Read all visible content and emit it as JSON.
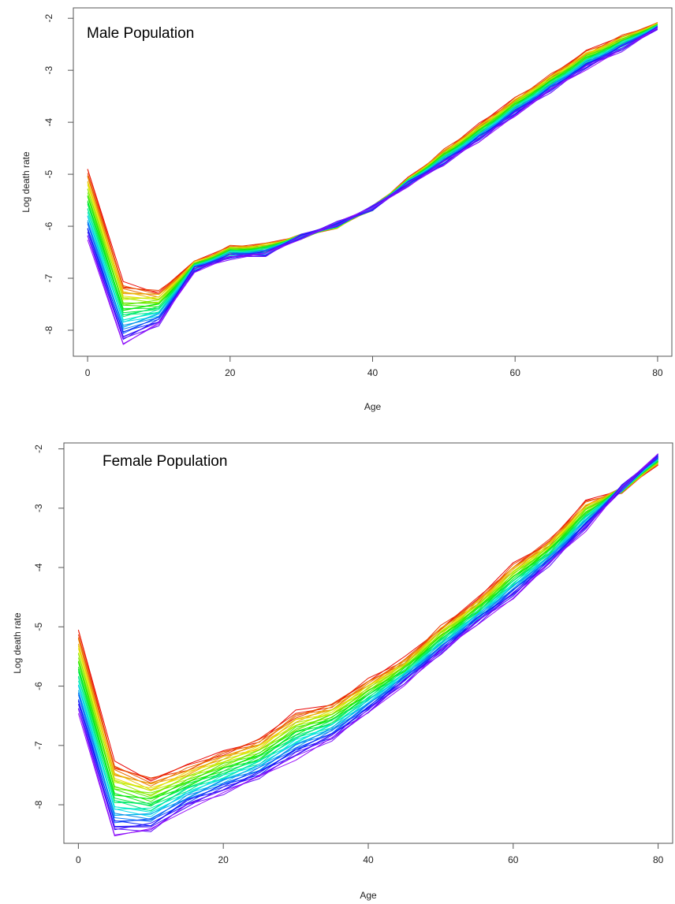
{
  "chart_data": [
    {
      "type": "line",
      "title": "Male Population",
      "xlabel": "Age",
      "ylabel": "Log death rate",
      "xlim": [
        -2,
        82
      ],
      "ylim": [
        -8.5,
        -1.8
      ],
      "xticks": [
        0,
        20,
        40,
        60,
        80
      ],
      "yticks": [
        -8,
        -7,
        -6,
        -5,
        -4,
        -3,
        -2
      ],
      "grid": false,
      "legend": "none",
      "x": [
        0,
        5,
        10,
        15,
        20,
        25,
        30,
        35,
        40,
        45,
        50,
        55,
        60,
        65,
        70,
        75,
        80
      ],
      "series_count": 40,
      "color_scale": "rainbow red→violet (earliest→latest)",
      "series_first": [
        -4.9,
        -7.1,
        -7.25,
        -6.7,
        -6.4,
        -6.35,
        -6.2,
        -6.0,
        -5.65,
        -5.1,
        -4.55,
        -4.05,
        -3.55,
        -3.1,
        -2.65,
        -2.35,
        -2.1
      ],
      "series_last": [
        -6.25,
        -8.25,
        -7.9,
        -6.85,
        -6.6,
        -6.55,
        -6.2,
        -5.95,
        -5.65,
        -5.2,
        -4.8,
        -4.35,
        -3.85,
        -3.4,
        -2.95,
        -2.6,
        -2.2
      ]
    },
    {
      "type": "line",
      "title": "Female Population",
      "xlabel": "Age",
      "ylabel": "Log death rate",
      "xlim": [
        -2,
        82
      ],
      "ylim": [
        -8.65,
        -1.9
      ],
      "xticks": [
        0,
        20,
        40,
        60,
        80
      ],
      "yticks": [
        -8,
        -7,
        -6,
        -5,
        -4,
        -3,
        -2
      ],
      "grid": false,
      "legend": "none",
      "x": [
        0,
        5,
        10,
        15,
        20,
        25,
        30,
        35,
        40,
        45,
        50,
        55,
        60,
        65,
        70,
        75,
        80
      ],
      "series_count": 40,
      "color_scale": "rainbow red→violet (earliest→latest)",
      "series_first": [
        -5.05,
        -7.3,
        -7.55,
        -7.35,
        -7.1,
        -6.9,
        -6.45,
        -6.3,
        -5.9,
        -5.55,
        -5.0,
        -4.55,
        -3.95,
        -3.55,
        -2.9,
        -2.7,
        -2.25
      ],
      "series_last": [
        -6.45,
        -8.5,
        -8.45,
        -8.05,
        -7.8,
        -7.55,
        -7.2,
        -6.9,
        -6.45,
        -5.95,
        -5.45,
        -4.95,
        -4.5,
        -3.95,
        -3.35,
        -2.65,
        -2.1
      ]
    }
  ]
}
